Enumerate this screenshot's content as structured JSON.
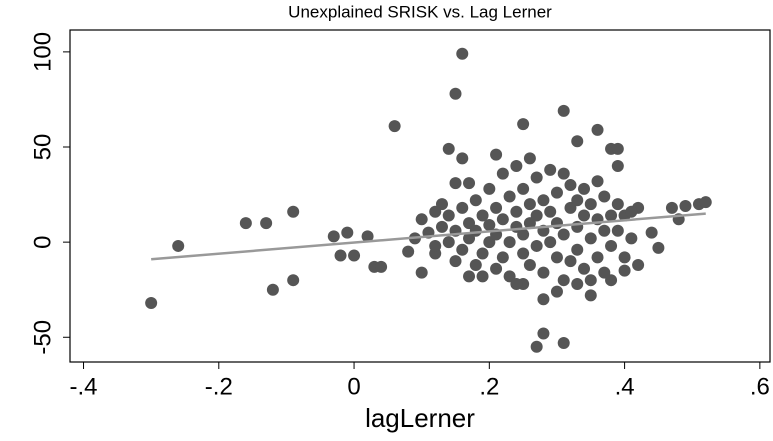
{
  "chart_data": {
    "type": "scatter",
    "title": "Unexplained SRISK vs. Lag Lerner",
    "x_label": "lagLerner",
    "color": "#555555",
    "x": [
      -0.3,
      -0.26,
      -0.16,
      -0.13,
      -0.12,
      -0.09,
      -0.09,
      -0.03,
      -0.02,
      -0.01,
      0.0,
      0.03,
      0.02,
      0.04,
      0.06,
      0.08,
      0.09,
      0.1,
      0.1,
      0.12,
      0.13,
      0.14,
      0.15,
      0.16,
      0.16,
      0.15,
      0.17,
      0.21,
      0.25,
      0.31,
      0.33,
      0.36,
      0.38,
      0.39,
      0.39,
      0.27,
      0.28,
      0.31,
      0.35,
      0.25,
      0.17,
      0.4,
      0.42,
      0.44,
      0.45,
      0.47,
      0.49,
      0.51,
      0.52,
      0.48,
      0.42,
      0.11,
      0.12,
      0.13,
      0.14,
      0.14,
      0.15,
      0.15,
      0.16,
      0.16,
      0.17,
      0.17,
      0.18,
      0.18,
      0.18,
      0.19,
      0.19,
      0.2,
      0.2,
      0.2,
      0.21,
      0.21,
      0.21,
      0.22,
      0.22,
      0.22,
      0.23,
      0.23,
      0.23,
      0.24,
      0.24,
      0.24,
      0.25,
      0.25,
      0.25,
      0.26,
      0.26,
      0.26,
      0.27,
      0.27,
      0.27,
      0.28,
      0.28,
      0.28,
      0.29,
      0.29,
      0.29,
      0.3,
      0.3,
      0.3,
      0.31,
      0.31,
      0.31,
      0.32,
      0.32,
      0.32,
      0.33,
      0.33,
      0.33,
      0.34,
      0.34,
      0.34,
      0.35,
      0.35,
      0.36,
      0.36,
      0.36,
      0.37,
      0.37,
      0.37,
      0.38,
      0.38,
      0.39,
      0.39,
      0.4,
      0.4,
      0.41,
      0.41,
      0.12,
      0.19,
      0.24,
      0.26,
      0.28,
      0.3,
      0.33,
      0.35,
      0.38
    ],
    "values": [
      -32,
      -2,
      10,
      10,
      -25,
      16,
      -20,
      3,
      -7,
      5,
      -7,
      -13,
      3,
      -13,
      61,
      -5,
      2,
      12,
      -16,
      -6,
      20,
      49,
      78,
      99,
      44,
      31,
      31,
      46,
      62,
      69,
      53,
      59,
      49,
      49,
      40,
      -55,
      -48,
      -53,
      -28,
      -22,
      -18,
      -15,
      -12,
      5,
      -3,
      18,
      19,
      20,
      21,
      12,
      18,
      5,
      -2,
      8,
      0,
      14,
      -10,
      6,
      18,
      -4,
      10,
      2,
      -12,
      22,
      6,
      -6,
      14,
      0,
      28,
      9,
      -14,
      18,
      4,
      36,
      -8,
      12,
      24,
      0,
      -18,
      8,
      40,
      16,
      -6,
      28,
      4,
      20,
      -12,
      10,
      34,
      -2,
      14,
      22,
      -16,
      6,
      38,
      0,
      16,
      -8,
      26,
      10,
      36,
      -20,
      4,
      18,
      -10,
      30,
      8,
      -4,
      22,
      14,
      -14,
      28,
      2,
      20,
      -8,
      12,
      32,
      6,
      -16,
      24,
      14,
      -2,
      20,
      6,
      -8,
      14,
      2,
      16,
      16,
      -18,
      -22,
      44,
      -30,
      -26,
      -22,
      -20,
      -20
    ],
    "fit": {
      "x": [
        -0.3,
        0.52
      ],
      "values": [
        -9,
        15
      ],
      "color": "#999999"
    },
    "xlim": [
      -0.42,
      0.615
    ],
    "ylim": [
      -63,
      111.5
    ],
    "xticks": [
      {
        "value": -0.4,
        "label": "-.4"
      },
      {
        "value": -0.2,
        "label": "-.2"
      },
      0,
      {
        "value": 0.2,
        "label": ".2"
      },
      {
        "value": 0.4,
        "label": ".4"
      },
      {
        "value": 0.6,
        "label": ".6"
      }
    ],
    "yticks": [
      -50,
      0,
      50,
      100
    ],
    "grid": false
  }
}
